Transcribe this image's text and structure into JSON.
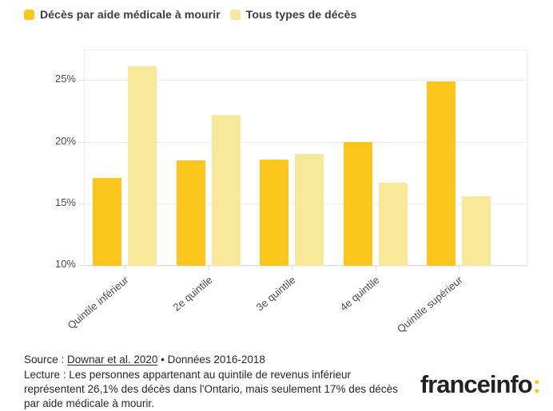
{
  "legend": {
    "items": [
      {
        "label": "Décès par aide médicale à mourir",
        "color": "#fcc51b"
      },
      {
        "label": "Tous types de décès",
        "color": "#f7e999"
      }
    ]
  },
  "chart_data": {
    "type": "bar",
    "categories": [
      "Quintile inférieur",
      "2e quintile",
      "3e quintile",
      "4e quintile",
      "Quintile supérieur"
    ],
    "series": [
      {
        "name": "Décès par aide médicale à mourir",
        "color": "#fcc51b",
        "values": [
          17.1,
          18.5,
          18.6,
          20.0,
          24.9
        ]
      },
      {
        "name": "Tous types de décès",
        "color": "#f7e999",
        "values": [
          26.1,
          22.2,
          19.0,
          16.7,
          15.6
        ]
      }
    ],
    "unit": "%",
    "title": "",
    "xlabel": "",
    "ylabel": "",
    "ylim": [
      10,
      27.4
    ],
    "y_ticks": [
      {
        "value": 25,
        "label": "25%"
      },
      {
        "value": 20,
        "label": "20%"
      },
      {
        "value": 15,
        "label": "15%"
      },
      {
        "value": 10,
        "label": "10%"
      }
    ],
    "grid": true,
    "legend_position": "top"
  },
  "footer": {
    "source_prefix": "Source : ",
    "source_link": "Downar et al. 2020",
    "source_suffix": " • Données 2016-2018",
    "lecture": "Lecture : Les personnes appartenant au quintile de revenus inférieur représentent 26,1% des décès dans l'Ontario, mais seulement 17% des décès par aide médicale à mourir."
  },
  "branding": {
    "logo_text": "franceinfo",
    "logo_colon": ":",
    "logo_color": "#232323",
    "accent_color": "#fdc513"
  }
}
